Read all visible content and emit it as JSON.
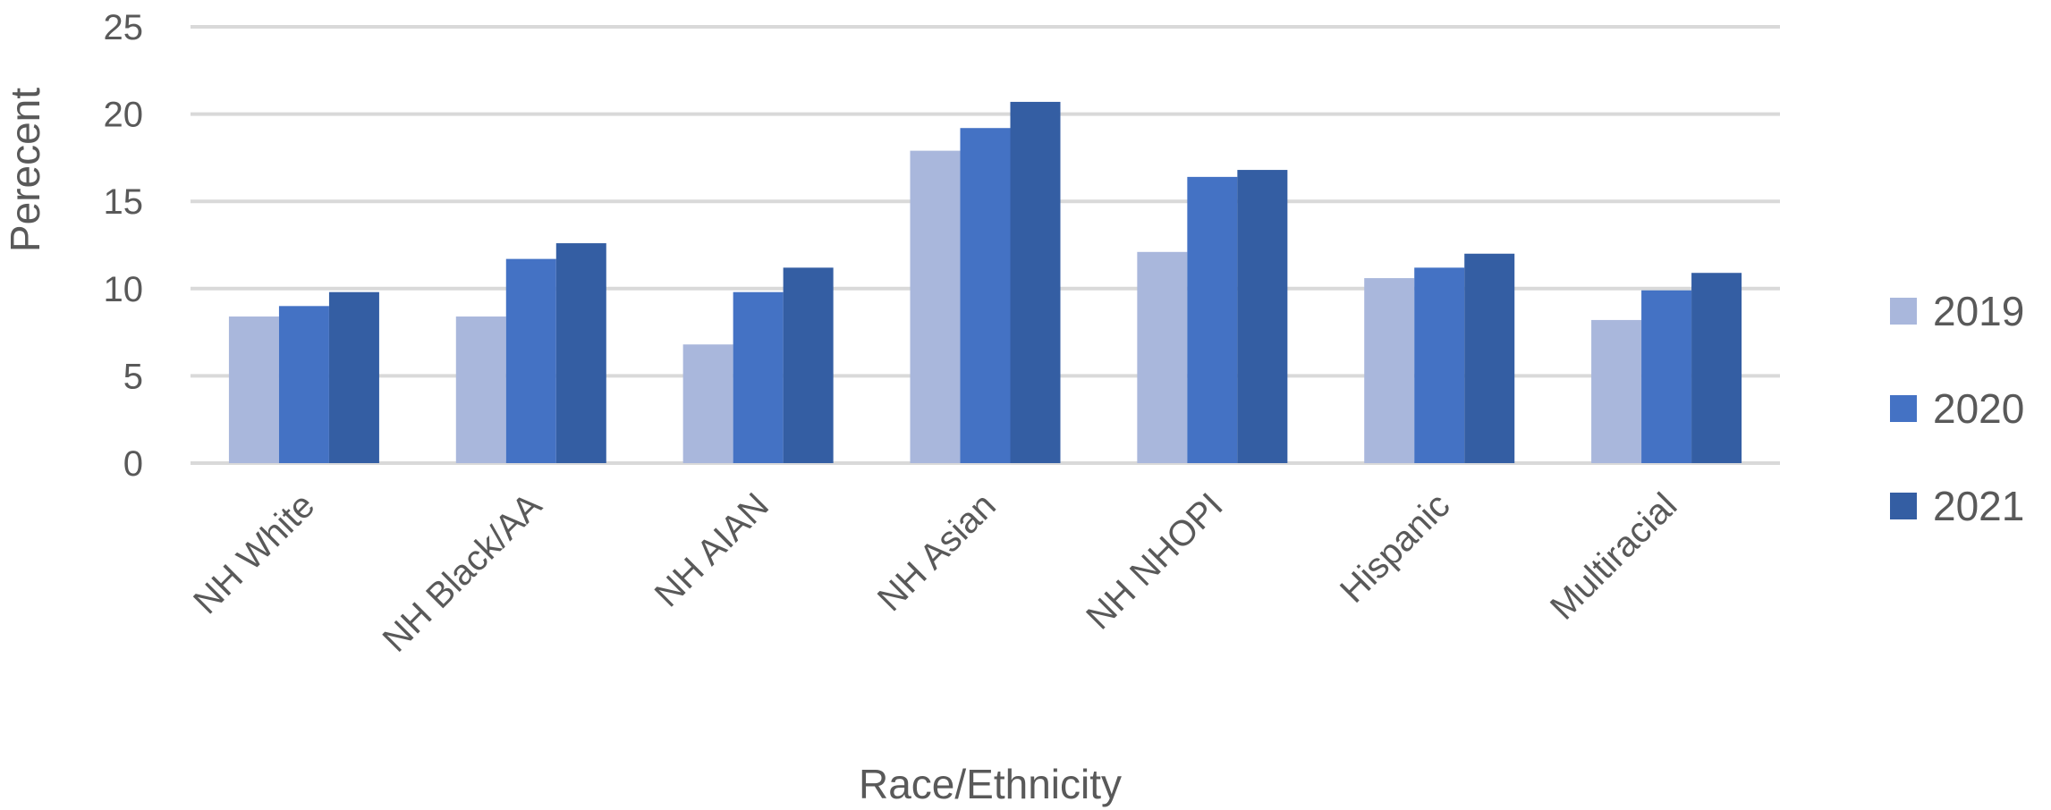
{
  "chart_data": {
    "type": "bar",
    "title": "",
    "xlabel": "Race/Ethnicity",
    "ylabel": "Perecent",
    "ylim": [
      0,
      25
    ],
    "yticks": [
      0,
      5,
      10,
      15,
      20,
      25
    ],
    "grid": true,
    "legend_position": "right",
    "categories": [
      "NH White",
      "NH Black/AA",
      "NH AIAN",
      "NH Asian",
      "NH NHOPI",
      "Hispanic",
      "Multiracial"
    ],
    "series": [
      {
        "name": "2019",
        "color": "#a9b7dc",
        "values": [
          8.4,
          8.4,
          6.8,
          17.9,
          12.1,
          10.6,
          8.2
        ]
      },
      {
        "name": "2020",
        "color": "#4472c4",
        "values": [
          9.0,
          11.7,
          9.8,
          19.2,
          16.4,
          11.2,
          9.9
        ]
      },
      {
        "name": "2021",
        "color": "#345ea3",
        "values": [
          9.8,
          12.6,
          11.2,
          20.7,
          16.8,
          12.0,
          10.9
        ]
      }
    ]
  }
}
